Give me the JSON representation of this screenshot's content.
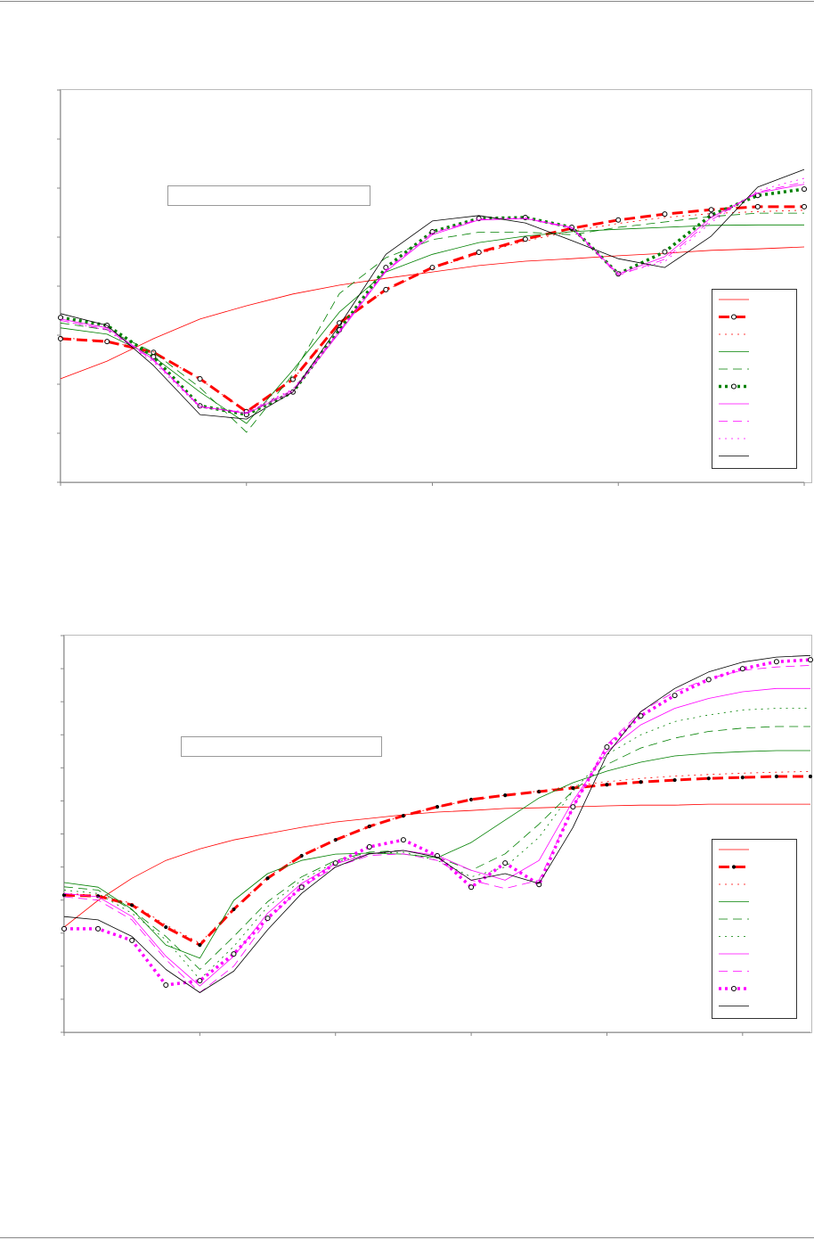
{
  "chart_data": [
    {
      "type": "line",
      "legend": "lower-right",
      "grid": false,
      "x": [
        0,
        0.25,
        0.5,
        0.75,
        1,
        1.25,
        1.5,
        1.75,
        2,
        2.25,
        2.5,
        2.75,
        3,
        3.25,
        3.5,
        3.75,
        4
      ],
      "xlim": [
        0,
        4
      ],
      "xticks": [
        0,
        1,
        2,
        3,
        4
      ],
      "ylim": [
        0,
        8
      ],
      "yticks": [
        0,
        1,
        2,
        3,
        4,
        5,
        6,
        7,
        8
      ],
      "series": [
        {
          "color": "#ff0000",
          "style": "solid",
          "marker": "none",
          "values": [
            2.11,
            2.47,
            2.93,
            3.33,
            3.6,
            3.84,
            4.02,
            4.16,
            4.29,
            4.42,
            4.51,
            4.56,
            4.62,
            4.67,
            4.73,
            4.76,
            4.8
          ]
        },
        {
          "color": "#ff0000",
          "style": "thick-dash",
          "marker": "circle",
          "values": [
            2.93,
            2.87,
            2.65,
            2.11,
            1.44,
            2.1,
            3.25,
            3.93,
            4.38,
            4.69,
            4.96,
            5.18,
            5.35,
            5.47,
            5.56,
            5.62,
            5.62
          ]
        },
        {
          "color": "#ff0000",
          "style": "dot",
          "marker": "none",
          "values": [
            2.95,
            2.88,
            2.66,
            2.1,
            1.45,
            2.1,
            3.25,
            3.92,
            4.36,
            4.66,
            4.92,
            5.12,
            5.28,
            5.4,
            5.48,
            5.52,
            5.55
          ]
        },
        {
          "color": "#008000",
          "style": "solid",
          "marker": "none",
          "values": [
            3.15,
            3.02,
            2.56,
            1.84,
            1.2,
            2.29,
            3.47,
            4.29,
            4.65,
            4.89,
            5.02,
            5.11,
            5.16,
            5.2,
            5.24,
            5.25,
            5.25
          ]
        },
        {
          "color": "#008000",
          "style": "dash",
          "marker": "none",
          "values": [
            3.25,
            3.11,
            2.65,
            1.93,
            1.02,
            2.2,
            3.85,
            4.58,
            4.95,
            5.1,
            5.1,
            5.05,
            5.2,
            5.31,
            5.42,
            5.49,
            5.49
          ]
        },
        {
          "color": "#008000",
          "style": "thick-dot",
          "marker": "circle",
          "values": [
            3.36,
            3.2,
            2.56,
            1.56,
            1.38,
            1.84,
            3.11,
            4.38,
            5.11,
            5.38,
            5.4,
            5.2,
            4.25,
            4.7,
            5.45,
            5.85,
            5.98
          ]
        },
        {
          "color": "#ff00ff",
          "style": "solid",
          "marker": "none",
          "values": [
            3.33,
            3.15,
            2.5,
            1.55,
            1.4,
            1.85,
            3.05,
            4.3,
            5.05,
            5.35,
            5.38,
            5.2,
            4.25,
            4.6,
            5.4,
            5.9,
            6.08
          ]
        },
        {
          "color": "#ff00ff",
          "style": "dash",
          "marker": "none",
          "values": [
            3.3,
            3.12,
            2.48,
            1.54,
            1.42,
            1.88,
            3.08,
            4.32,
            5.08,
            5.36,
            5.38,
            5.18,
            4.22,
            4.55,
            5.35,
            5.92,
            6.12
          ]
        },
        {
          "color": "#ff00ff",
          "style": "dot",
          "marker": "none",
          "values": [
            3.3,
            3.1,
            2.45,
            1.52,
            1.44,
            1.9,
            3.1,
            4.35,
            5.1,
            5.38,
            5.4,
            5.2,
            4.25,
            4.5,
            5.3,
            5.95,
            6.2
          ]
        },
        {
          "color": "#000000",
          "style": "solid",
          "marker": "none",
          "values": [
            3.44,
            3.2,
            2.38,
            1.38,
            1.29,
            1.84,
            3.2,
            4.65,
            5.33,
            5.44,
            5.29,
            4.93,
            4.56,
            4.38,
            5.02,
            6.02,
            6.38
          ]
        }
      ]
    },
    {
      "type": "line",
      "legend": "lower-right",
      "grid": false,
      "x": [
        0,
        0.25,
        0.5,
        0.75,
        1,
        1.25,
        1.5,
        1.75,
        2,
        2.25,
        2.5,
        2.75,
        3,
        3.25,
        3.5,
        3.75,
        4,
        4.25,
        4.5,
        4.75,
        5,
        5.25,
        5.5
      ],
      "xlim": [
        0,
        5.5
      ],
      "xticks": [
        0,
        1,
        2,
        3,
        4,
        5
      ],
      "ylim": [
        0,
        12
      ],
      "yticks": [
        0,
        1,
        2,
        3,
        4,
        5,
        6,
        7,
        8,
        9,
        10,
        11,
        12
      ],
      "series": [
        {
          "color": "#ff0000",
          "style": "solid",
          "marker": "none",
          "values": [
            3.18,
            3.99,
            4.66,
            5.2,
            5.55,
            5.82,
            6.01,
            6.2,
            6.36,
            6.47,
            6.58,
            6.66,
            6.71,
            6.77,
            6.79,
            6.82,
            6.85,
            6.87,
            6.87,
            6.9,
            6.9,
            6.9,
            6.9
          ]
        },
        {
          "color": "#ff0000",
          "style": "thick-dash",
          "marker": "dot",
          "values": [
            4.15,
            4.12,
            3.85,
            3.18,
            2.64,
            3.72,
            4.66,
            5.34,
            5.82,
            6.23,
            6.55,
            6.82,
            7.04,
            7.17,
            7.28,
            7.39,
            7.49,
            7.57,
            7.63,
            7.68,
            7.71,
            7.74,
            7.74
          ]
        },
        {
          "color": "#ff0000",
          "style": "dot",
          "marker": "none",
          "values": [
            4.2,
            4.15,
            3.9,
            3.25,
            2.7,
            3.75,
            4.7,
            5.35,
            5.82,
            6.22,
            6.55,
            6.82,
            7.03,
            7.17,
            7.3,
            7.45,
            7.58,
            7.68,
            7.75,
            7.8,
            7.84,
            7.87,
            7.89
          ]
        },
        {
          "color": "#008000",
          "style": "solid",
          "marker": "none",
          "values": [
            4.53,
            4.39,
            3.72,
            2.64,
            2.24,
            3.99,
            4.8,
            5.2,
            5.39,
            5.42,
            5.39,
            5.28,
            5.74,
            6.42,
            7.09,
            7.55,
            7.9,
            8.17,
            8.36,
            8.44,
            8.49,
            8.52,
            8.52
          ]
        },
        {
          "color": "#008000",
          "style": "dash",
          "marker": "none",
          "values": [
            4.4,
            4.3,
            3.7,
            2.9,
            1.9,
            2.9,
            3.95,
            4.7,
            5.2,
            5.45,
            5.5,
            5.3,
            4.9,
            5.4,
            6.3,
            7.3,
            8.1,
            8.6,
            8.9,
            9.1,
            9.2,
            9.25,
            9.25
          ]
        },
        {
          "color": "#008000",
          "style": "dot",
          "marker": "none",
          "values": [
            4.3,
            4.2,
            3.6,
            2.8,
            1.6,
            2.6,
            3.8,
            4.6,
            5.15,
            5.4,
            5.45,
            5.2,
            4.7,
            5.0,
            5.9,
            7.3,
            8.4,
            9.0,
            9.4,
            9.6,
            9.75,
            9.8,
            9.8
          ]
        },
        {
          "color": "#ff00ff",
          "style": "solid",
          "marker": "none",
          "values": [
            4.2,
            4.1,
            3.5,
            2.3,
            1.4,
            2.3,
            3.6,
            4.5,
            5.1,
            5.4,
            5.5,
            5.35,
            4.9,
            4.6,
            5.2,
            7.0,
            8.5,
            9.3,
            9.8,
            10.1,
            10.3,
            10.4,
            10.4
          ]
        },
        {
          "color": "#ff00ff",
          "style": "dash",
          "marker": "none",
          "values": [
            4.1,
            4.0,
            3.4,
            2.2,
            1.2,
            2.0,
            3.4,
            4.4,
            5.0,
            5.35,
            5.4,
            5.2,
            4.6,
            4.35,
            4.6,
            6.8,
            8.7,
            9.7,
            10.3,
            10.7,
            10.95,
            11.05,
            11.1
          ]
        },
        {
          "color": "#ff00ff",
          "style": "thick-dot",
          "marker": "circle",
          "values": [
            3.13,
            3.13,
            2.78,
            1.43,
            1.56,
            2.37,
            3.45,
            4.39,
            5.12,
            5.61,
            5.82,
            5.34,
            4.39,
            5.12,
            4.47,
            6.82,
            8.63,
            9.57,
            10.19,
            10.67,
            11.0,
            11.21,
            11.27
          ]
        },
        {
          "color": "#000000",
          "style": "solid",
          "marker": "none",
          "values": [
            3.5,
            3.4,
            2.9,
            1.9,
            1.2,
            1.85,
            3.1,
            4.2,
            5.0,
            5.4,
            5.5,
            5.3,
            4.6,
            4.8,
            4.5,
            6.2,
            8.4,
            9.7,
            10.4,
            10.9,
            11.2,
            11.35,
            11.4
          ]
        }
      ]
    }
  ]
}
